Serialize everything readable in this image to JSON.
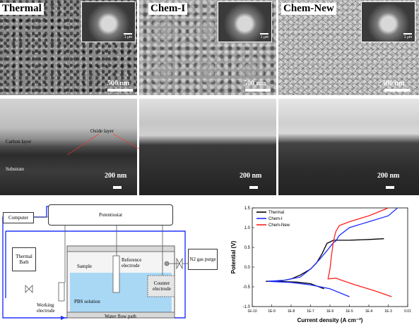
{
  "sem_panels": {
    "labels": [
      "Thermal",
      "Chem-I",
      "Chem-New"
    ],
    "top_scale": "500 nm",
    "inset_scale": "1 μm",
    "bottom_scale": "200 nm",
    "annotations": {
      "oxide_layer": "Oxide layer",
      "carbon_layer": "Carbon layer",
      "substrate": "Substrate"
    }
  },
  "schematic": {
    "computer": "Computer",
    "potentiostat": "Potentiostat",
    "thermal_bath": "Thermal Bath",
    "sample": "Sample",
    "reference_electrode": "Reference electrode",
    "n2_gas_purge": "N2 gas purge",
    "counter_electrode": "Counter electrode",
    "working_electrode": "Working electrode",
    "pbs_solution": "PBS solution",
    "water_flow_path": "Water flow path"
  },
  "chart_data": {
    "type": "line",
    "xlabel": "Current density (A cm⁻²)",
    "ylabel": "Potential (V)",
    "x_scale": "log",
    "xlim": [
      1e-10,
      0.01
    ],
    "ylim": [
      -1.0,
      1.5
    ],
    "x_ticks": [
      "1E-10",
      "1E-9",
      "1E-8",
      "1E-7",
      "1E-6",
      "1E-5",
      "1E-4",
      "1E-3",
      "0.01"
    ],
    "y_ticks": [
      "-1.0",
      "-0.5",
      "0.0",
      "0.5",
      "1.0",
      "1.5"
    ],
    "legend_position": "top-left",
    "series": [
      {
        "name": "Thermal",
        "color": "#000000",
        "x": [
          5e-07,
          1e-07,
          2e-08,
          5e-09,
          5e-10,
          3e-09,
          1e-08,
          3e-08,
          1e-07,
          2e-07,
          4e-07,
          7e-07,
          1.5e-06,
          1e-05,
          0.0001,
          0.0006
        ],
        "y": [
          -0.55,
          -0.42,
          -0.38,
          -0.37,
          -0.36,
          -0.35,
          -0.3,
          -0.2,
          -0.05,
          0.1,
          0.35,
          0.6,
          0.68,
          0.68,
          0.7,
          0.72
        ]
      },
      {
        "name": "Chem-I",
        "color": "#1e2cff",
        "x": [
          1e-05,
          1e-06,
          1e-07,
          1e-08,
          6e-10,
          5e-09,
          3e-08,
          1e-07,
          3e-07,
          8e-07,
          1.5e-06,
          2e-06,
          3e-06,
          1e-05,
          0.0001,
          0.001,
          0.003
        ],
        "y": [
          -0.75,
          -0.55,
          -0.45,
          -0.39,
          -0.36,
          -0.33,
          -0.25,
          -0.05,
          0.2,
          0.45,
          0.62,
          0.66,
          0.8,
          1.0,
          1.15,
          1.3,
          1.5
        ]
      },
      {
        "name": "Chem-New",
        "color": "#ff2020",
        "x": [
          0.0015,
          0.0002,
          2e-05,
          5e-06,
          2e-06,
          8e-07,
          1e-06,
          1.2e-06,
          1.5e-06,
          2e-06,
          3e-06,
          1e-05,
          0.0001,
          0.001
        ],
        "y": [
          -0.75,
          -0.6,
          -0.45,
          -0.35,
          -0.28,
          -0.3,
          -0.05,
          0.3,
          0.65,
          0.9,
          1.05,
          1.15,
          1.3,
          1.5
        ]
      }
    ]
  }
}
